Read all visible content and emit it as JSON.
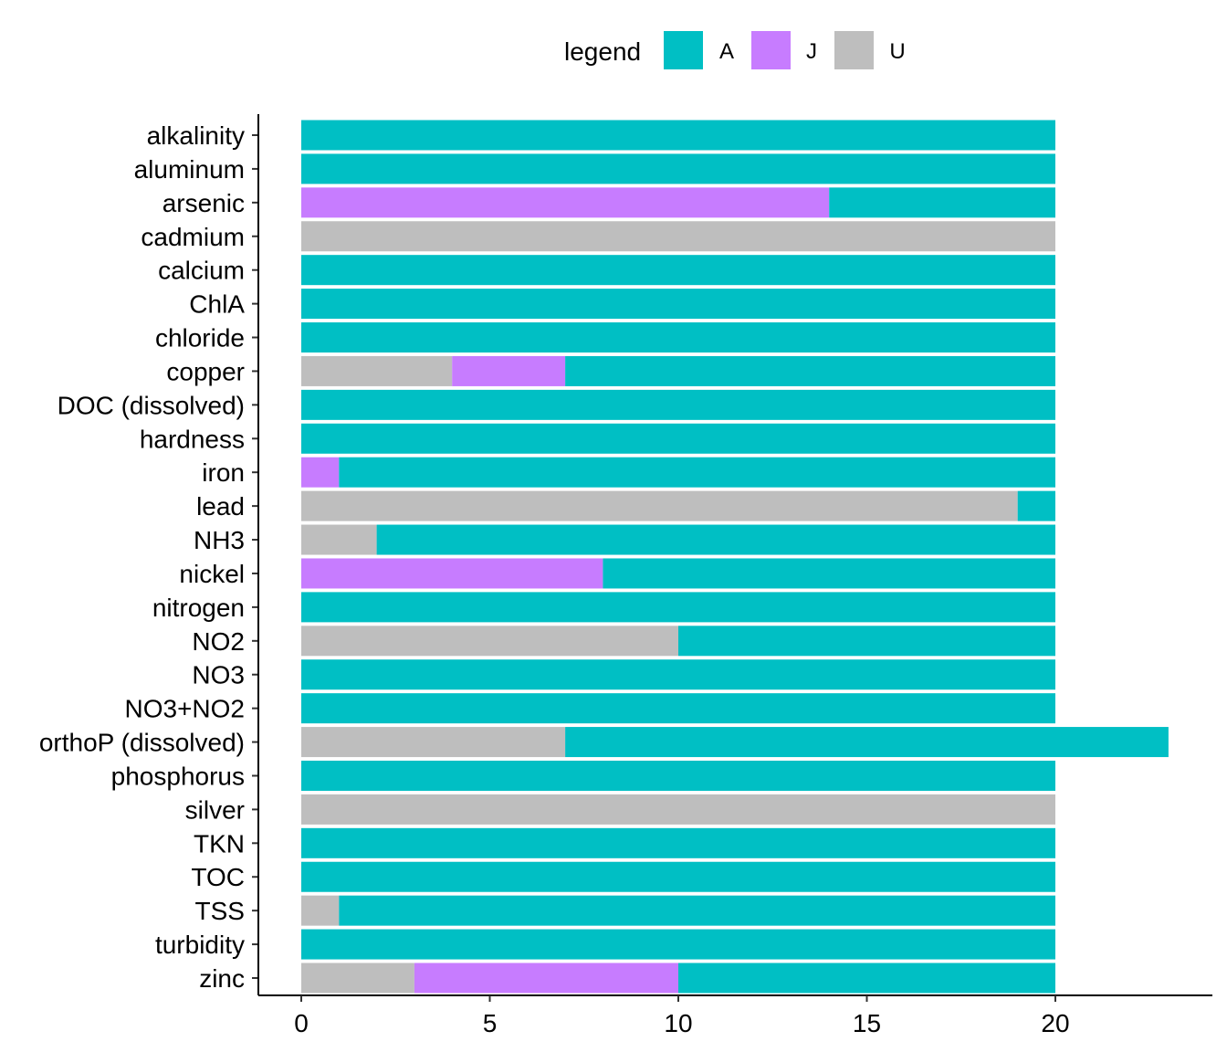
{
  "chart_data": {
    "type": "bar",
    "orientation": "horizontal",
    "stacked": true,
    "legend": {
      "title": "legend",
      "position": "top",
      "items": [
        {
          "name": "A",
          "color": "#00BFC4"
        },
        {
          "name": "J",
          "color": "#C77CFF"
        },
        {
          "name": "U",
          "color": "#BEBEBE"
        }
      ]
    },
    "categories": [
      "alkalinity",
      "aluminum",
      "arsenic",
      "cadmium",
      "calcium",
      "ChlA",
      "chloride",
      "copper",
      "DOC (dissolved)",
      "hardness",
      "iron",
      "lead",
      "NH3",
      "nickel",
      "nitrogen",
      "NO2",
      "NO3",
      "NO3+NO2",
      "orthoP (dissolved)",
      "phosphorus",
      "silver",
      "TKN",
      "TOC",
      "TSS",
      "turbidity",
      "zinc"
    ],
    "series": [
      {
        "name": "U",
        "values": [
          0,
          0,
          0,
          20,
          0,
          0,
          0,
          4,
          0,
          0,
          0,
          19,
          2,
          0,
          0,
          10,
          0,
          0,
          7,
          0,
          20,
          0,
          0,
          1,
          0,
          3
        ]
      },
      {
        "name": "J",
        "values": [
          0,
          0,
          14,
          0,
          0,
          0,
          0,
          3,
          0,
          0,
          1,
          0,
          0,
          8,
          0,
          0,
          0,
          0,
          0,
          0,
          0,
          0,
          0,
          0,
          0,
          7
        ]
      },
      {
        "name": "A",
        "values": [
          20,
          20,
          6,
          0,
          20,
          20,
          20,
          13,
          20,
          20,
          19,
          1,
          18,
          12,
          20,
          10,
          20,
          20,
          16,
          20,
          0,
          20,
          20,
          19,
          20,
          10
        ]
      }
    ],
    "xlim": [
      0,
      23
    ],
    "xticks": [
      "0",
      "5",
      "10",
      "15",
      "20"
    ],
    "xtick_values": [
      0,
      5,
      10,
      15,
      20
    ],
    "xlabel": "",
    "ylabel": "",
    "title": "",
    "grid": false
  }
}
